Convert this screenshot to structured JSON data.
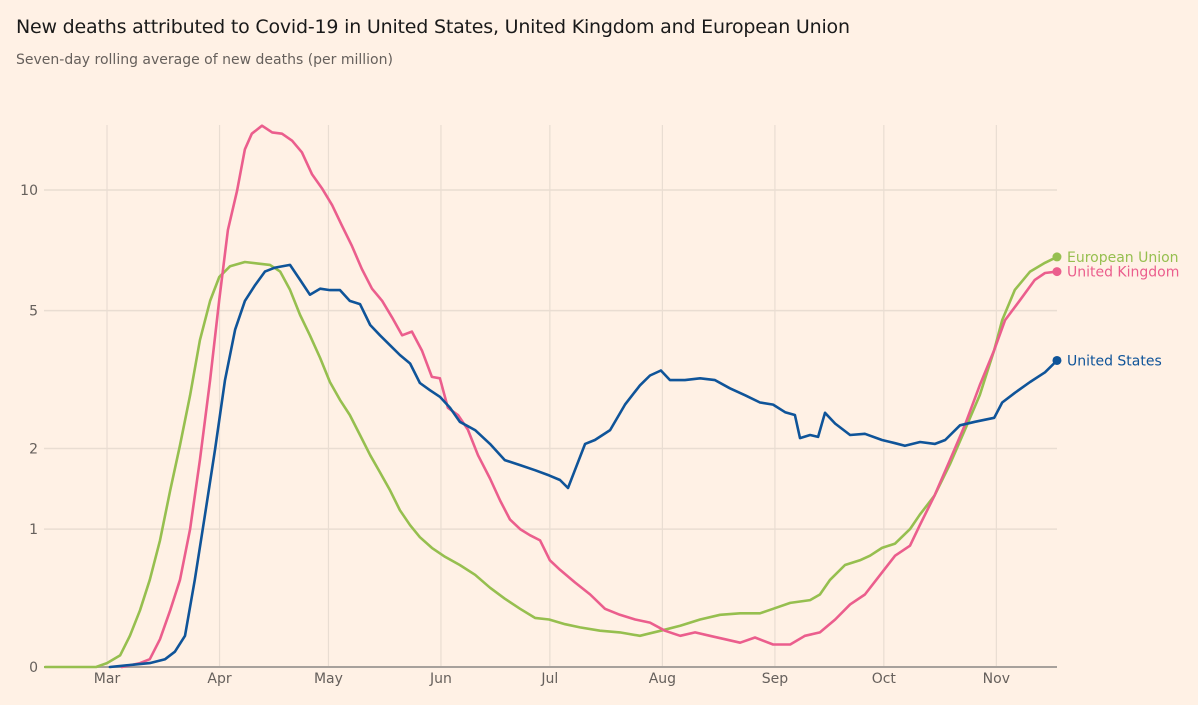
{
  "header": {
    "title": "New deaths attributed to Covid-19 in United States, United Kingdom and European Union",
    "subtitle": "Seven-day rolling average of new deaths (per million)"
  },
  "chart_data": {
    "type": "line",
    "title": "New deaths attributed to Covid-19 in United States, United Kingdom and European Union",
    "subtitle": "Seven-day rolling average of new deaths (per million)",
    "xlabel": "",
    "ylabel": "",
    "y_scale": "log(1+x)",
    "x_unit": "days since Mar 1",
    "x_range": [
      -17,
      261
    ],
    "ylim": [
      0,
      14.5
    ],
    "grid": true,
    "legend_placement": "right (end-of-line labels)",
    "y_ticks": [
      {
        "value": 0,
        "label": "0"
      },
      {
        "value": 1,
        "label": "1"
      },
      {
        "value": 2,
        "label": "2"
      },
      {
        "value": 5,
        "label": "5"
      },
      {
        "value": 10,
        "label": "10"
      }
    ],
    "x_ticks": [
      {
        "day": 0,
        "label": "Mar"
      },
      {
        "day": 31,
        "label": "Apr"
      },
      {
        "day": 61,
        "label": "May"
      },
      {
        "day": 92,
        "label": "Jun"
      },
      {
        "day": 122,
        "label": "Jul"
      },
      {
        "day": 153,
        "label": "Aug"
      },
      {
        "day": 184,
        "label": "Sep"
      },
      {
        "day": 214,
        "label": "Oct"
      },
      {
        "day": 245,
        "label": "Nov"
      }
    ],
    "series": [
      {
        "name": "European Union",
        "color": "#96bf4f",
        "points": [
          [
            -17,
            0
          ],
          [
            -10,
            0
          ],
          [
            -3,
            0
          ],
          [
            0,
            0.02
          ],
          [
            3.6,
            0.06
          ],
          [
            6.3,
            0.17
          ],
          [
            9.1,
            0.33
          ],
          [
            11.8,
            0.55
          ],
          [
            14.6,
            0.89
          ],
          [
            17.4,
            1.43
          ],
          [
            20.1,
            2.05
          ],
          [
            22.9,
            2.92
          ],
          [
            25.6,
            4.17
          ],
          [
            28.4,
            5.3
          ],
          [
            30.9,
            6.1
          ],
          [
            33.9,
            6.5
          ],
          [
            38,
            6.66
          ],
          [
            41.6,
            6.6
          ],
          [
            44.9,
            6.55
          ],
          [
            47.7,
            6.3
          ],
          [
            50.4,
            5.66
          ],
          [
            53.2,
            4.87
          ],
          [
            55.9,
            4.3
          ],
          [
            58.7,
            3.73
          ],
          [
            61.4,
            3.19
          ],
          [
            64.2,
            2.83
          ],
          [
            66.9,
            2.55
          ],
          [
            69.7,
            2.21
          ],
          [
            72.5,
            1.9
          ],
          [
            75.2,
            1.66
          ],
          [
            78,
            1.43
          ],
          [
            80.7,
            1.2
          ],
          [
            83.5,
            1.04
          ],
          [
            86.2,
            0.92
          ],
          [
            89.5,
            0.82
          ],
          [
            93.1,
            0.74
          ],
          [
            97.2,
            0.67
          ],
          [
            101.4,
            0.59
          ],
          [
            105.5,
            0.49
          ],
          [
            109.6,
            0.41
          ],
          [
            113.8,
            0.34
          ],
          [
            117.9,
            0.28
          ],
          [
            121.8,
            0.27
          ],
          [
            126.2,
            0.24
          ],
          [
            130.3,
            0.22
          ],
          [
            135.8,
            0.2
          ],
          [
            141.3,
            0.19
          ],
          [
            146.8,
            0.17
          ],
          [
            152.6,
            0.2
          ],
          [
            157.9,
            0.23
          ],
          [
            163.4,
            0.27
          ],
          [
            168.9,
            0.3
          ],
          [
            174.4,
            0.31
          ],
          [
            179.9,
            0.31
          ],
          [
            183.5,
            0.34
          ],
          [
            188.2,
            0.38
          ],
          [
            193.7,
            0.4
          ],
          [
            196.4,
            0.44
          ],
          [
            199.2,
            0.55
          ],
          [
            203.3,
            0.67
          ],
          [
            207.4,
            0.71
          ],
          [
            210.2,
            0.75
          ],
          [
            213.5,
            0.82
          ],
          [
            217.1,
            0.86
          ],
          [
            221.2,
            1.0
          ],
          [
            223.9,
            1.15
          ],
          [
            228,
            1.37
          ],
          [
            232.2,
            1.77
          ],
          [
            236.3,
            2.29
          ],
          [
            240.4,
            2.92
          ],
          [
            244.4,
            3.92
          ],
          [
            246.6,
            4.72
          ],
          [
            250.1,
            5.66
          ],
          [
            254.3,
            6.3
          ],
          [
            258.4,
            6.63
          ],
          [
            261.7,
            6.86
          ]
        ]
      },
      {
        "name": "United Kingdom",
        "color": "#eb5e8d",
        "points": [
          [
            4.1,
            0
          ],
          [
            9.1,
            0.02
          ],
          [
            11.8,
            0.04
          ],
          [
            14.6,
            0.15
          ],
          [
            17.4,
            0.33
          ],
          [
            20.1,
            0.55
          ],
          [
            22.9,
            1.0
          ],
          [
            25.6,
            1.83
          ],
          [
            28.4,
            3.23
          ],
          [
            30.9,
            5.32
          ],
          [
            33.3,
            8.0
          ],
          [
            35.8,
            9.94
          ],
          [
            38,
            12.5
          ],
          [
            39.9,
            13.6
          ],
          [
            42.7,
            14.2
          ],
          [
            45.5,
            13.7
          ],
          [
            48.2,
            13.6
          ],
          [
            51,
            13.1
          ],
          [
            53.7,
            12.3
          ],
          [
            56.5,
            10.9
          ],
          [
            59.2,
            10.1
          ],
          [
            62,
            9.2
          ],
          [
            64.7,
            8.2
          ],
          [
            67.5,
            7.3
          ],
          [
            70.2,
            6.4
          ],
          [
            73,
            5.7
          ],
          [
            75.8,
            5.3
          ],
          [
            78.5,
            4.8
          ],
          [
            81.3,
            4.3
          ],
          [
            84,
            4.4
          ],
          [
            86.8,
            3.9
          ],
          [
            89.5,
            3.3
          ],
          [
            91.7,
            3.27
          ],
          [
            93.9,
            2.68
          ],
          [
            96.7,
            2.55
          ],
          [
            99.4,
            2.3
          ],
          [
            102.2,
            1.9
          ],
          [
            105.5,
            1.58
          ],
          [
            108.3,
            1.31
          ],
          [
            111,
            1.1
          ],
          [
            113.8,
            1.0
          ],
          [
            116.5,
            0.94
          ],
          [
            119.3,
            0.89
          ],
          [
            122,
            0.71
          ],
          [
            124.8,
            0.63
          ],
          [
            128.9,
            0.53
          ],
          [
            133.1,
            0.44
          ],
          [
            137.2,
            0.34
          ],
          [
            141.3,
            0.3
          ],
          [
            145.5,
            0.27
          ],
          [
            149.6,
            0.25
          ],
          [
            153.7,
            0.2
          ],
          [
            157.9,
            0.17
          ],
          [
            162,
            0.19
          ],
          [
            166.1,
            0.17
          ],
          [
            170.2,
            0.15
          ],
          [
            174.4,
            0.13
          ],
          [
            178.5,
            0.16
          ],
          [
            183.5,
            0.12
          ],
          [
            188.2,
            0.12
          ],
          [
            192.3,
            0.17
          ],
          [
            196.4,
            0.19
          ],
          [
            200.6,
            0.27
          ],
          [
            204.7,
            0.37
          ],
          [
            208.8,
            0.44
          ],
          [
            213,
            0.59
          ],
          [
            217.1,
            0.75
          ],
          [
            221.2,
            0.84
          ],
          [
            223.9,
            1.04
          ],
          [
            228,
            1.37
          ],
          [
            232.2,
            1.83
          ],
          [
            236.3,
            2.37
          ],
          [
            240.4,
            3.12
          ],
          [
            244.4,
            3.92
          ],
          [
            247.4,
            4.72
          ],
          [
            251.5,
            5.32
          ],
          [
            255.6,
            6.0
          ],
          [
            258.4,
            6.25
          ],
          [
            261.7,
            6.3
          ]
        ]
      },
      {
        "name": "United States",
        "color": "#0f5499",
        "points": [
          [
            0.8,
            0
          ],
          [
            11.8,
            0.02
          ],
          [
            16,
            0.04
          ],
          [
            18.7,
            0.08
          ],
          [
            21.5,
            0.17
          ],
          [
            24.2,
            0.55
          ],
          [
            27,
            1.15
          ],
          [
            29.8,
            2.0
          ],
          [
            32.5,
            3.23
          ],
          [
            35.3,
            4.45
          ],
          [
            38,
            5.3
          ],
          [
            40.8,
            5.82
          ],
          [
            43.5,
            6.3
          ],
          [
            46.3,
            6.45
          ],
          [
            50.4,
            6.55
          ],
          [
            53.2,
            6.0
          ],
          [
            55.9,
            5.5
          ],
          [
            58.7,
            5.7
          ],
          [
            61.4,
            5.65
          ],
          [
            64.2,
            5.65
          ],
          [
            66.9,
            5.3
          ],
          [
            69.7,
            5.2
          ],
          [
            72.5,
            4.58
          ],
          [
            75.2,
            4.3
          ],
          [
            78,
            4.04
          ],
          [
            80.7,
            3.8
          ],
          [
            83.5,
            3.6
          ],
          [
            86.2,
            3.17
          ],
          [
            89,
            3.02
          ],
          [
            91.7,
            2.89
          ],
          [
            94.5,
            2.68
          ],
          [
            97.2,
            2.43
          ],
          [
            101.4,
            2.29
          ],
          [
            105.5,
            2.07
          ],
          [
            109.6,
            1.83
          ],
          [
            113.8,
            1.76
          ],
          [
            117.9,
            1.69
          ],
          [
            121.8,
            1.62
          ],
          [
            124.8,
            1.56
          ],
          [
            127,
            1.46
          ],
          [
            128.9,
            1.69
          ],
          [
            131.7,
            2.07
          ],
          [
            134.4,
            2.13
          ],
          [
            138.6,
            2.29
          ],
          [
            142.7,
            2.74
          ],
          [
            146.8,
            3.12
          ],
          [
            149.6,
            3.33
          ],
          [
            152.6,
            3.44
          ],
          [
            155.1,
            3.23
          ],
          [
            159.2,
            3.23
          ],
          [
            163.4,
            3.27
          ],
          [
            167.5,
            3.23
          ],
          [
            171.6,
            3.06
          ],
          [
            175.8,
            2.92
          ],
          [
            179.9,
            2.78
          ],
          [
            183.5,
            2.74
          ],
          [
            186.8,
            2.6
          ],
          [
            189.5,
            2.55
          ],
          [
            190.9,
            2.16
          ],
          [
            193.7,
            2.21
          ],
          [
            195.9,
            2.18
          ],
          [
            197.8,
            2.59
          ],
          [
            200.6,
            2.4
          ],
          [
            204.7,
            2.21
          ],
          [
            208.8,
            2.23
          ],
          [
            213.5,
            2.13
          ],
          [
            217.1,
            2.08
          ],
          [
            219.8,
            2.04
          ],
          [
            224,
            2.1
          ],
          [
            228.1,
            2.07
          ],
          [
            230.9,
            2.13
          ],
          [
            235,
            2.37
          ],
          [
            239.1,
            2.43
          ],
          [
            244.4,
            2.5
          ],
          [
            246.6,
            2.78
          ],
          [
            250.1,
            2.97
          ],
          [
            254.3,
            3.19
          ],
          [
            258.4,
            3.4
          ],
          [
            261.7,
            3.67
          ]
        ]
      }
    ]
  }
}
